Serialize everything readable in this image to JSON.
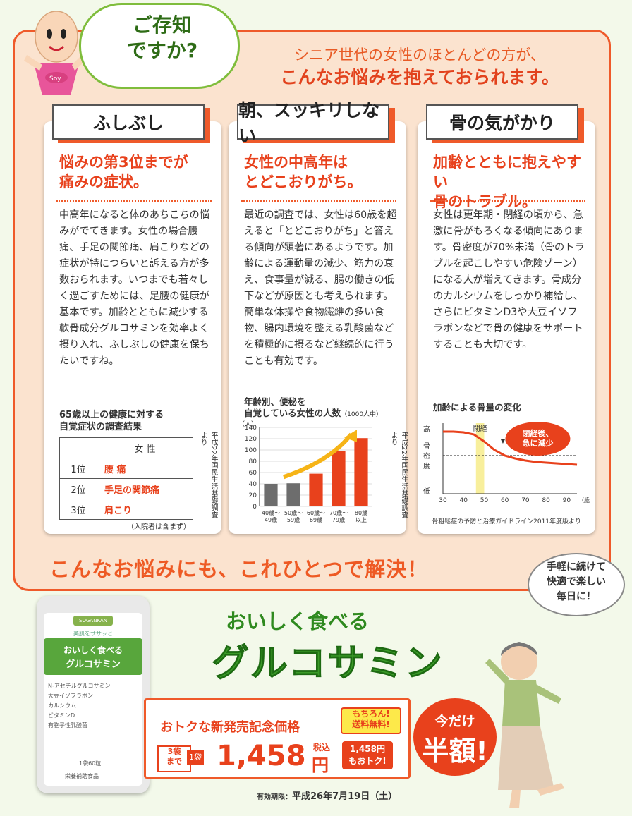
{
  "header": {
    "badge_text": "Soy",
    "speech_title": "ご存知\nですか?",
    "intro_line1": "シニア世代の女性のほとんどの方が、",
    "intro_line2": "こんなお悩みを抱えておられます。"
  },
  "cards": [
    {
      "tab": "ふしぶし",
      "headline": "悩みの第3位までが\n痛みの症状。",
      "body": "中高年になると体のあちこちの悩みがでてきます。女性の場合腰痛、手足の関節痛、肩こりなどの症状が特につらいと訴える方が多数おられます。いつまでも若々しく過ごすためには、足腰の健康が基本です。加齢とともに減少する軟骨成分グルコサミンを効率よく摂り入れ、ふしぶしの健康を保ちたいですね。",
      "table_title": "65歳以上の健康に対する\n自覚症状の調査結果",
      "table_header": "女 性",
      "table_rows": [
        {
          "rank": "1位",
          "symptom": "腰 痛"
        },
        {
          "rank": "2位",
          "symptom": "手足の関節痛"
        },
        {
          "rank": "3位",
          "symptom": "肩こり"
        }
      ],
      "table_note": "（入院者は含まず）",
      "source": "平成22年国民生活基礎調査より"
    },
    {
      "tab": "朝、スッキリしない",
      "headline": "女性の中高年は\nとどこおりがち。",
      "body": "最近の調査では、女性は60歳を超えると「とどこおりがち」と答える傾向が顕著にあるようです。加齢による運動量の減少、筋力の衰え、食事量が減る、腸の働きの低下などが原因とも考えられます。簡単な体操や食物繊維の多い食物、腸内環境を整える乳酸菌などを積極的に摂るなど継続的に行うことも有効です。",
      "source": "平成22年国民生活基礎調査より"
    },
    {
      "tab": "骨の気がかり",
      "headline": "加齢とともに抱えやすい\n骨のトラブル。",
      "body": "女性は更年期・閉経の頃から、急激に骨がもろくなる傾向にあります。骨密度が70%未満（骨のトラブルを起こしやすい危険ゾーン）になる人が増えてきます。骨成分のカルシウムをしっかり補給し、さらにビタミンD3や大豆イソフラボンなどで骨の健康をサポートすることも大切です。",
      "source": "骨粗鬆症の予防と治療ガイドライン2011年度版より"
    }
  ],
  "chart_data": [
    {
      "type": "bar",
      "title": "年齢別、便秘を\n自覚している女性の人数",
      "unit_note": "（1000人中）",
      "ylabel": "（人）",
      "categories": [
        "40歳〜\n49歳",
        "50歳〜\n59歳",
        "60歳〜\n69歳",
        "70歳〜\n79歳",
        "80歳\n以上"
      ],
      "values": [
        40,
        41,
        58,
        98,
        121
      ],
      "ylim": [
        0,
        140
      ],
      "yticks": [
        0,
        20,
        40,
        60,
        80,
        100,
        120,
        140
      ],
      "colors": [
        "#6d6d6d",
        "#6d6d6d",
        "#e8411c",
        "#e8411c",
        "#e8411c"
      ],
      "grid": true
    },
    {
      "type": "line",
      "title": "加齢による骨量の変化",
      "ylabel": "骨密度",
      "y_high": "高",
      "y_low": "低",
      "x": [
        30,
        35,
        40,
        45,
        50,
        55,
        60,
        65,
        70,
        75,
        80,
        85,
        90,
        95
      ],
      "xticks": [
        30,
        40,
        50,
        60,
        70,
        80,
        90
      ],
      "x_unit": "（歳）",
      "y": [
        88,
        88,
        87,
        84,
        74,
        62,
        54,
        50,
        47,
        45,
        44,
        43,
        42,
        41
      ],
      "ylim": [
        0,
        100
      ],
      "threshold": 54,
      "threshold_label": "▼骨折をしやすい範囲",
      "threshold_sub": "（骨密度70%未満）",
      "menopause_band": [
        46,
        50
      ],
      "menopause_label": "閉経",
      "callout": "閉経後、\n急に減少",
      "line_color": "#e8411c"
    }
  ],
  "bottom": {
    "headline": "こんなお悩みにも、これひとつで解決！",
    "woman_bubble": "手軽に続けて\n快適で楽しい\n毎日に！"
  },
  "package": {
    "logo": "SOGANKAN",
    "subtitle": "美肌をササッと",
    "name1": "おいしく食べる",
    "name2": "グルコサミン",
    "items": [
      "N-アセチルグルコサミン",
      "大豆イソフラボン",
      "カルシウム",
      "ビタミンD",
      "有胞子性乳酸菌"
    ],
    "count_note": "1袋60粒",
    "footer": "栄養補助食品"
  },
  "product": {
    "name1": "おいしく食べる",
    "name2": "グルコサミン"
  },
  "pricing": {
    "label": "おトクな新発売記念価格",
    "free_shipping": "もちろん!\n送料無料!",
    "qty_limit": "3袋\nまで",
    "per_bag": "1袋",
    "price": "1,458",
    "tax": "税込",
    "yen": "円",
    "badge": "1,458円\nもおトク!",
    "half_top": "今だけ",
    "half_main": "半額!",
    "expiry_label": "有効期限：",
    "expiry_date": "平成26年7月19日（土）"
  },
  "colors": {
    "accent": "#e8411c",
    "frame": "#ef5a2a",
    "green": "#3a9a28",
    "background": "#f3f9ea"
  }
}
